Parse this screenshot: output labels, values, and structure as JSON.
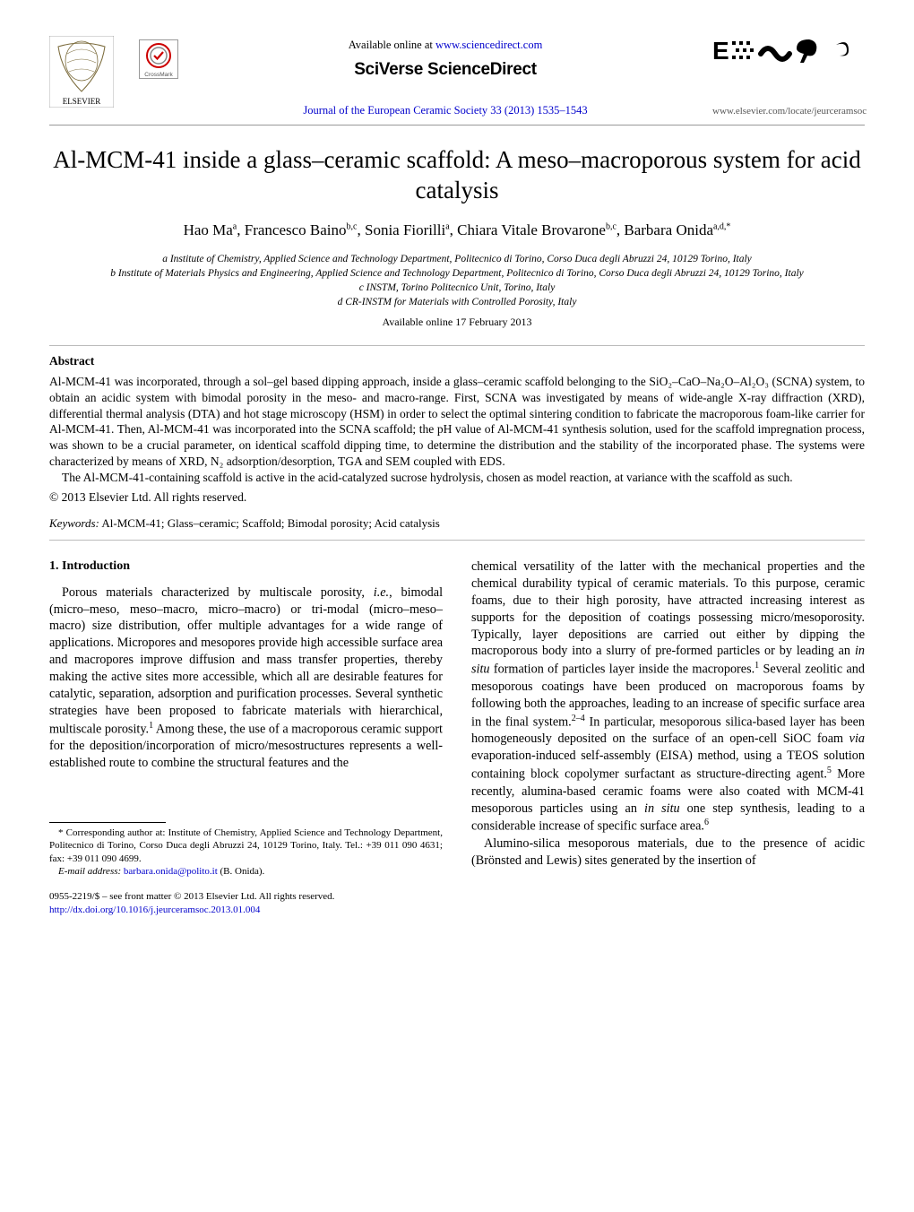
{
  "header": {
    "available_prefix": "Available online at ",
    "available_url": "www.sciencedirect.com",
    "sciverse": "SciVerse ScienceDirect",
    "journal_ref": "Journal of the European Ceramic Society 33 (2013) 1535–1543",
    "locate_url": "www.elsevier.com/locate/jeurceramsoc"
  },
  "title": "Al-MCM-41 inside a glass–ceramic scaffold: A meso–macroporous system for acid catalysis",
  "authors_html": "Hao Ma<span class='sup'>a</span>, Francesco Baino<span class='sup'>b,c</span>, Sonia Fiorilli<span class='sup'>a</span>, Chiara Vitale Brovarone<span class='sup'>b,c</span>, Barbara Onida<span class='sup'>a,d,*</span>",
  "affiliations": [
    "a Institute of Chemistry, Applied Science and Technology Department, Politecnico di Torino, Corso Duca degli Abruzzi 24, 10129 Torino, Italy",
    "b Institute of Materials Physics and Engineering, Applied Science and Technology Department, Politecnico di Torino, Corso Duca degli Abruzzi 24, 10129 Torino, Italy",
    "c INSTM, Torino Politecnico Unit, Torino, Italy",
    "d CR-INSTM for Materials with Controlled Porosity, Italy"
  ],
  "available_date": "Available online 17 February 2013",
  "abstract": {
    "heading": "Abstract",
    "p1": "Al-MCM-41 was incorporated, through a sol–gel based dipping approach, inside a glass–ceramic scaffold belonging to the SiO₂–CaO–Na₂O–Al₂O₃ (SCNA) system, to obtain an acidic system with bimodal porosity in the meso- and macro-range. First, SCNA was investigated by means of wide-angle X-ray diffraction (XRD), differential thermal analysis (DTA) and hot stage microscopy (HSM) in order to select the optimal sintering condition to fabricate the macroporous foam-like carrier for Al-MCM-41. Then, Al-MCM-41 was incorporated into the SCNA scaffold; the pH value of Al-MCM-41 synthesis solution, used for the scaffold impregnation process, was shown to be a crucial parameter, on identical scaffold dipping time, to determine the distribution and the stability of the incorporated phase. The systems were characterized by means of XRD, N₂ adsorption/desorption, TGA and SEM coupled with EDS.",
    "p2": "The Al-MCM-41-containing scaffold is active in the acid-catalyzed sucrose hydrolysis, chosen as model reaction, at variance with the scaffold as such.",
    "copyright": "© 2013 Elsevier Ltd. All rights reserved."
  },
  "keywords": {
    "label": "Keywords:",
    "text": " Al-MCM-41; Glass–ceramic; Scaffold; Bimodal porosity; Acid catalysis"
  },
  "intro": {
    "heading": "1.  Introduction",
    "col1_p1_html": "Porous materials characterized by multiscale porosity, <i>i.e.</i>, bimodal (micro–meso, meso–macro, micro–macro) or tri-modal (micro–meso–macro) size distribution, offer multiple advantages for a wide range of applications. Micropores and mesopores provide high accessible surface area and macropores improve diffusion and mass transfer properties, thereby making the active sites more accessible, which all are desirable features for catalytic, separation, adsorption and purification processes. Several synthetic strategies have been proposed to fabricate materials with hierarchical, multiscale porosity.<span class='sup'>1</span> Among these, the use of a macroporous ceramic support for the deposition/incorporation of micro/mesostructures represents a well-established route to combine the structural features and the",
    "col2_p1_html": "chemical versatility of the latter with the mechanical properties and the chemical durability typical of ceramic materials. To this purpose, ceramic foams, due to their high porosity, have attracted increasing interest as supports for the deposition of coatings possessing micro/mesoporosity. Typically, layer depositions are carried out either by dipping the macroporous body into a slurry of pre-formed particles or by leading an <i>in situ</i> formation of particles layer inside the macropores.<span class='sup'>1</span> Several zeolitic and mesoporous coatings have been produced on macroporous foams by following both the approaches, leading to an increase of specific surface area in the final system.<span class='sup'>2–4</span> In particular, mesoporous silica-based layer has been homogeneously deposited on the surface of an open-cell SiOC foam <i>via</i> evaporation-induced self-assembly (EISA) method, using a TEOS solution containing block copolymer surfactant as structure-directing agent.<span class='sup'>5</span> More recently, alumina-based ceramic foams were also coated with MCM-41 mesoporous particles using an <i>in situ</i> one step synthesis, leading to a considerable increase of specific surface area.<span class='sup'>6</span>",
    "col2_p2_html": "Alumino-silica mesoporous materials, due to the presence of acidic (Brönsted and Lewis) sites generated by the insertion of"
  },
  "footnote": {
    "corr": "* Corresponding author at: Institute of Chemistry, Applied Science and Technology Department, Politecnico di Torino, Corso Duca degli Abruzzi 24, 10129 Torino, Italy. Tel.: +39 011 090 4631; fax: +39 011 090 4699.",
    "email_label": "E-mail address: ",
    "email": "barbara.onida@polito.it",
    "email_suffix": " (B. Onida)."
  },
  "doi": {
    "line1": "0955-2219/$ – see front matter © 2013 Elsevier Ltd. All rights reserved.",
    "link": "http://dx.doi.org/10.1016/j.jeurceramsoc.2013.01.004"
  },
  "colors": {
    "link": "#0000cc",
    "text": "#000000",
    "bg": "#ffffff",
    "rule": "#999999"
  }
}
